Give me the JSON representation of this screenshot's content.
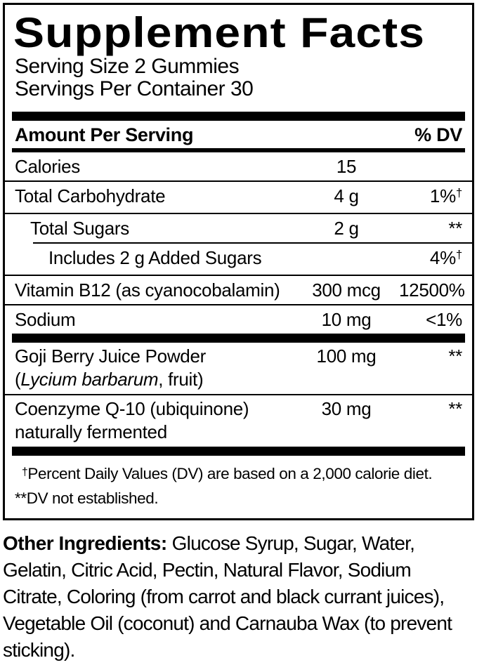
{
  "colors": {
    "text": "#000000",
    "background": "#ffffff"
  },
  "label": {
    "title": "Supplement Facts",
    "serving_size": "Serving Size 2 Gummies",
    "servings_per_container": "Servings Per Container 30",
    "header": {
      "amount": "Amount Per Serving",
      "dv": "% DV"
    },
    "rows": [
      {
        "name": "Calories",
        "amount": "15",
        "dv": ""
      },
      {
        "name": "Total Carbohydrate",
        "amount": "4 g",
        "dv": "1%",
        "dv_sup": "†"
      },
      {
        "name": "Total Sugars",
        "amount": "2 g",
        "dv": "**"
      },
      {
        "name": "Includes 2 g Added Sugars",
        "amount": "",
        "dv": "4%",
        "dv_sup": "†"
      },
      {
        "name": "Vitamin B12 (as cyanocobalamin)",
        "amount": "300 mcg",
        "dv": "12500%"
      },
      {
        "name": "Sodium",
        "amount": "10 mg",
        "dv": "<1%"
      }
    ],
    "extra_rows": [
      {
        "name": "Goji Berry Juice Powder",
        "name2_pre": "(",
        "name2_italic": "Lycium barbarum",
        "name2_post": ", fruit)",
        "amount": "100 mg",
        "dv": "**"
      },
      {
        "name": "Coenzyme Q-10 (ubiquinone)",
        "name2": "naturally fermented",
        "amount": "30 mg",
        "dv": "**"
      }
    ],
    "footnotes": [
      {
        "marker": "†",
        "text": "Percent Daily Values (DV) are based on a 2,000 calorie diet."
      },
      {
        "marker": "**",
        "text": "DV not established."
      }
    ]
  },
  "other_ingredients": {
    "label": "Other Ingredients:",
    "text": " Glucose Syrup, Sugar, Water, Gelatin, Citric Acid, Pectin, Natural Flavor, Sodium Citrate, Coloring (from carrot and black currant juices), Vegetable Oil (coconut) and Carnauba Wax (to prevent sticking)."
  }
}
